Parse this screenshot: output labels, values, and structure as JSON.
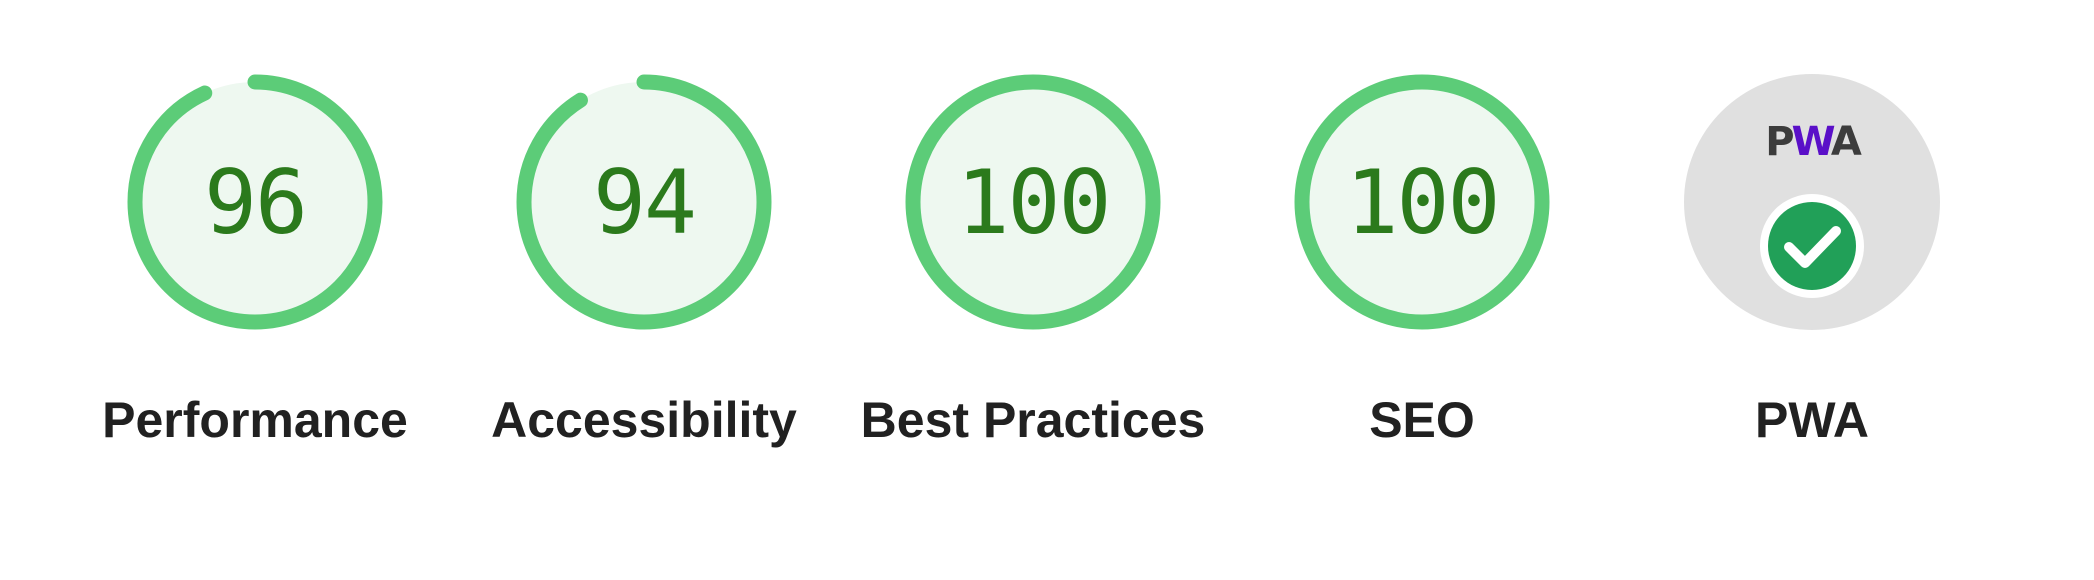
{
  "colors": {
    "pass_arc": "#5ccc78",
    "pass_fill": "#eef8f0",
    "pass_text": "#2b7a1c",
    "label_text": "#212121",
    "pwa_bg": "#e0e0e0",
    "pwa_badge": "#21a058",
    "pwa_wordmark_letters": "#3c3c3c",
    "pwa_wordmark_w": "#5a0fc8"
  },
  "categories": [
    {
      "key": "performance",
      "label": "Performance",
      "score": "96",
      "fraction": 0.96
    },
    {
      "key": "accessibility",
      "label": "Accessibility",
      "score": "94",
      "fraction": 0.94
    },
    {
      "key": "best-practices",
      "label": "Best Practices",
      "score": "100",
      "fraction": 1.0
    },
    {
      "key": "seo",
      "label": "SEO",
      "score": "100",
      "fraction": 1.0
    }
  ],
  "pwa": {
    "label": "PWA",
    "wordmark": {
      "p": "P",
      "w": "W",
      "a": "A"
    },
    "badge_icon": "checkmark-icon",
    "status": "passed"
  }
}
